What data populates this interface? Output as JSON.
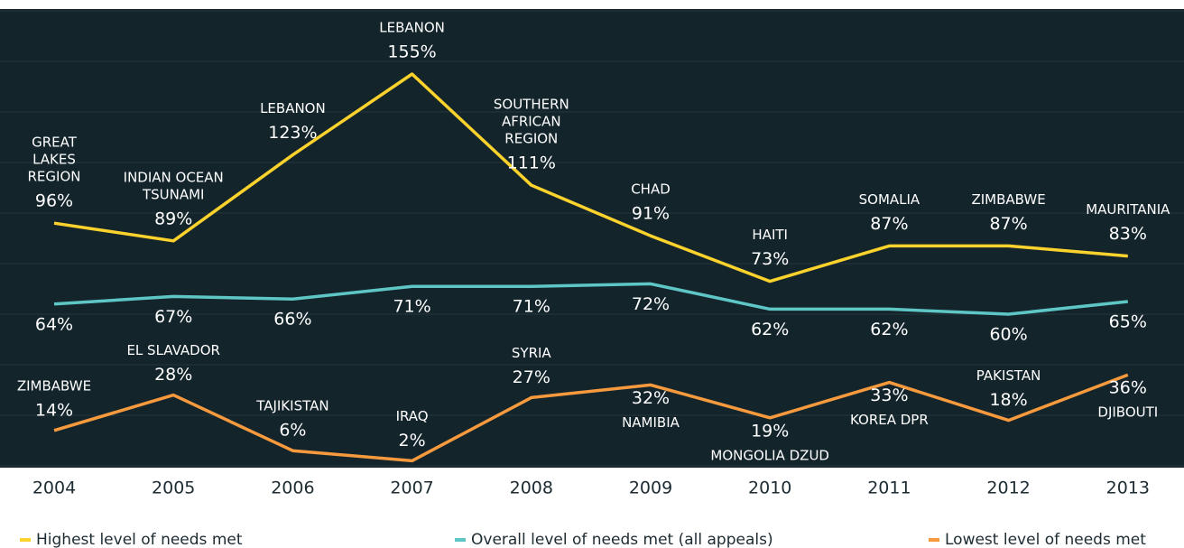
{
  "chart_data": {
    "type": "line",
    "categories": [
      "2004",
      "2005",
      "2006",
      "2007",
      "2008",
      "2009",
      "2010",
      "2011",
      "2012",
      "2013"
    ],
    "ylim": [
      0,
      180
    ],
    "yticks": [
      0,
      20,
      40,
      60,
      80,
      100,
      120,
      140,
      160,
      180
    ],
    "grid": true,
    "legend": "bottom",
    "series": [
      {
        "name": "Highest level of needs met",
        "color": "#fcd22c",
        "values": [
          96,
          89,
          123,
          155,
          111,
          91,
          73,
          87,
          87,
          83
        ],
        "value_labels": [
          "96%",
          "89%",
          "123%",
          "155%",
          "111%",
          "91%",
          "73%",
          "87%",
          "87%",
          "83%"
        ],
        "labels": [
          [
            "GREAT",
            "LAKES",
            "REGION"
          ],
          [
            "INDIAN OCEAN",
            "TSUNAMI"
          ],
          [
            "LEBANON"
          ],
          [
            "LEBANON"
          ],
          [
            "SOUTHERN",
            "AFRICAN",
            "REGION"
          ],
          [
            "CHAD"
          ],
          [
            "HAITI"
          ],
          [
            "SOMALIA"
          ],
          [
            "ZIMBABWE"
          ],
          [
            "MAURITANIA"
          ]
        ]
      },
      {
        "name": "Overall level of needs met (all appeals)",
        "color": "#5ec7c6",
        "values": [
          64,
          67,
          66,
          71,
          71,
          72,
          62,
          62,
          60,
          65
        ],
        "value_labels": [
          "64%",
          "67%",
          "66%",
          "71%",
          "71%",
          "72%",
          "62%",
          "62%",
          "60%",
          "65%"
        ]
      },
      {
        "name": "Lowest level of needs met",
        "color": "#f79a3e",
        "values": [
          14,
          28,
          6,
          2,
          27,
          32,
          19,
          33,
          18,
          36
        ],
        "value_labels": [
          "14%",
          "28%",
          "6%",
          "2%",
          "27%",
          "32%",
          "19%",
          "33%",
          "18%",
          "36%"
        ],
        "labels": [
          [
            "ZIMBABWE"
          ],
          [
            "EL SLAVADOR"
          ],
          [
            "TAJIKISTAN"
          ],
          [
            "IRAQ"
          ],
          [
            "SYRIA"
          ],
          [
            "NAMIBIA"
          ],
          [
            "MONGOLIA DZUD"
          ],
          [
            "KOREA DPR"
          ],
          [
            "PAKISTAN"
          ],
          [
            "DJIBOUTI"
          ]
        ]
      }
    ]
  }
}
